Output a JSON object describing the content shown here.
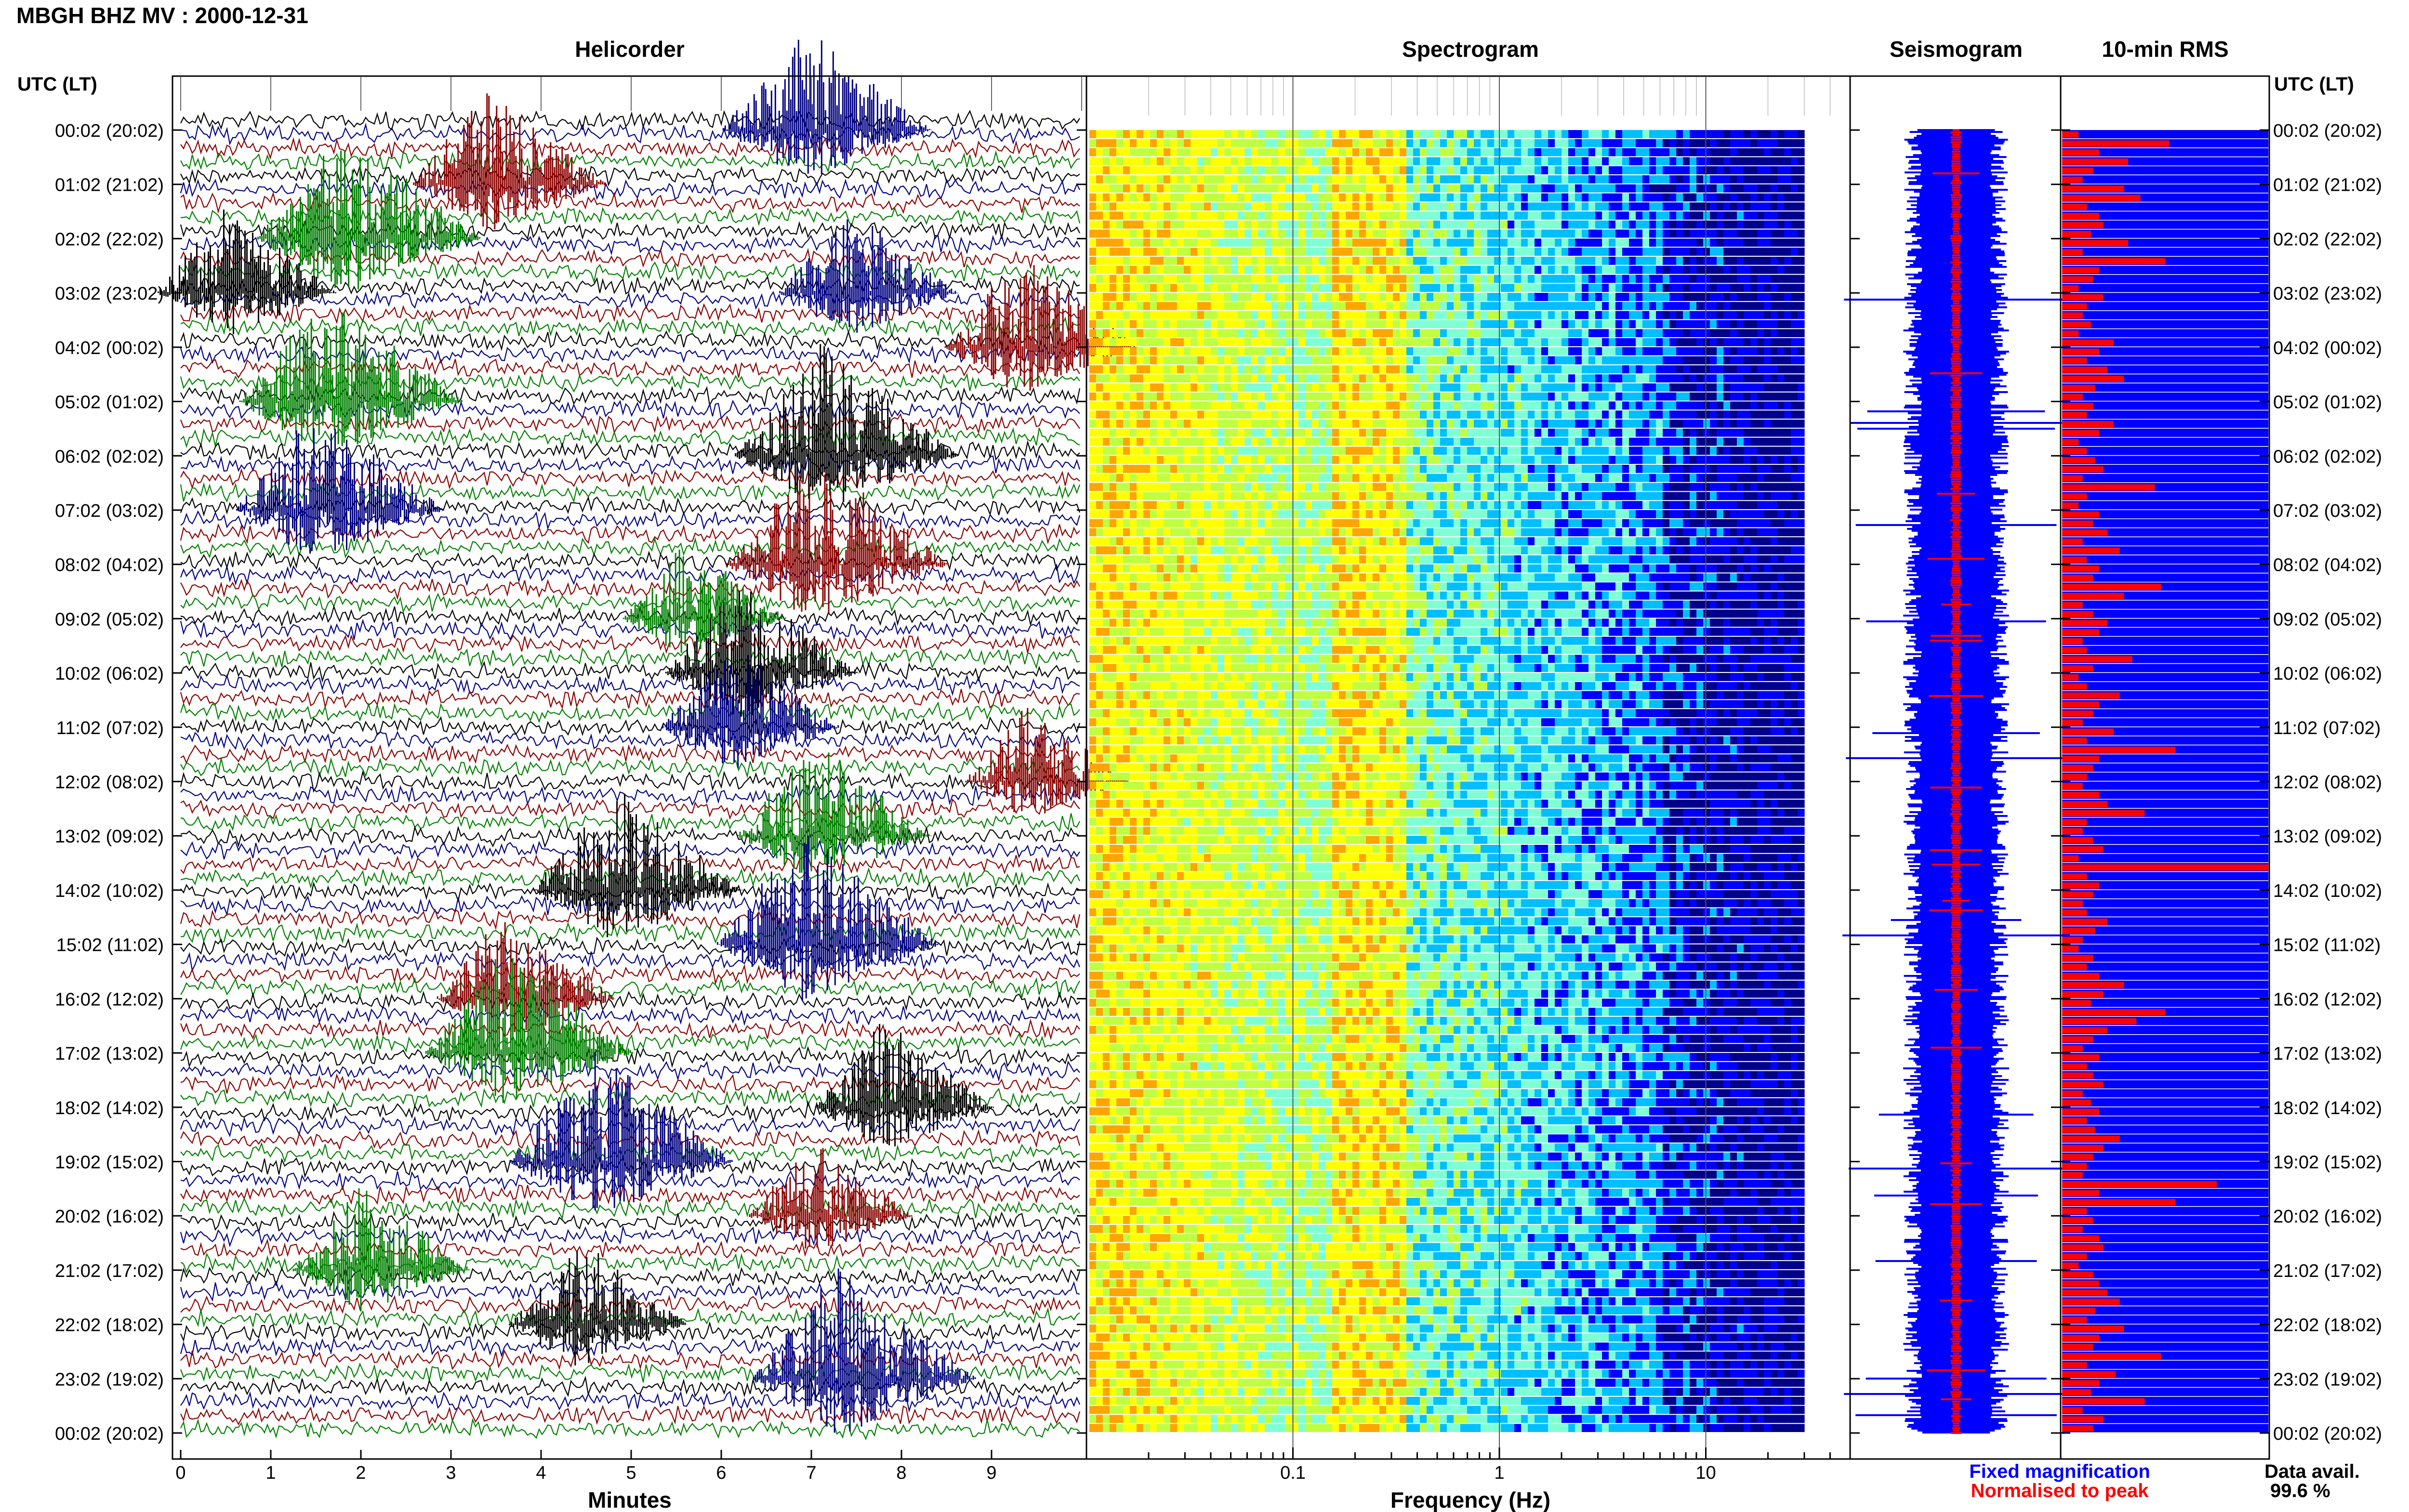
{
  "figure_title": "MBGH BHZ MV : 2000-12-31",
  "panels": {
    "helicorder": "Helicorder",
    "spectrogram": "Spectrogram",
    "seismogram": "Seismogram",
    "rms": "10-min RMS"
  },
  "time_axis_label": "UTC (LT)",
  "row_labels": [
    "00:02 (20:02)",
    "01:02 (21:02)",
    "02:02 (22:02)",
    "03:02 (23:02)",
    "04:02 (00:02)",
    "05:02 (01:02)",
    "06:02 (02:02)",
    "07:02 (03:02)",
    "08:02 (04:02)",
    "09:02 (05:02)",
    "10:02 (06:02)",
    "11:02 (07:02)",
    "12:02 (08:02)",
    "13:02 (09:02)",
    "14:02 (10:02)",
    "15:02 (11:02)",
    "16:02 (12:02)",
    "17:02 (13:02)",
    "18:02 (14:02)",
    "19:02 (15:02)",
    "20:02 (16:02)",
    "21:02 (17:02)",
    "22:02 (18:02)",
    "23:02 (19:02)",
    "00:02 (20:02)"
  ],
  "colors": {
    "trace_cycle": [
      "#000000",
      "#000080",
      "#8b0000",
      "#008000"
    ],
    "fixed": "#0000ff",
    "normalised": "#ff0000"
  },
  "legend": {
    "fixed": "Fixed magnification",
    "normalised": "Normalised to peak",
    "data_avail_label": "Data avail.",
    "data_avail_value": "99.6 %"
  },
  "chart_data": [
    {
      "type": "line",
      "name": "helicorder",
      "xlabel": "Minutes",
      "xlim": [
        0,
        10
      ],
      "xticks": [
        "0",
        "1",
        "2",
        "3",
        "4",
        "5",
        "6",
        "7",
        "8",
        "9"
      ],
      "rows": 24,
      "row_minutes": 10,
      "events": [
        {
          "hour": 0,
          "minute": 6.9,
          "amp": 0.9
        },
        {
          "hour": 1,
          "minute": 3.4,
          "amp": 0.8
        },
        {
          "hour": 2,
          "minute": 1.8,
          "amp": 1.0
        },
        {
          "hour": 3,
          "minute": 0.5,
          "amp": 0.7
        },
        {
          "hour": 3,
          "minute": 7.4,
          "amp": 0.7
        },
        {
          "hour": 4,
          "minute": 9.3,
          "amp": 0.8
        },
        {
          "hour": 5,
          "minute": 1.6,
          "amp": 1.0
        },
        {
          "hour": 6,
          "minute": 7.1,
          "amp": 1.0
        },
        {
          "hour": 7,
          "minute": 1.5,
          "amp": 0.9
        },
        {
          "hour": 8,
          "minute": 7.0,
          "amp": 1.0
        },
        {
          "hour": 9,
          "minute": 5.6,
          "amp": 0.6
        },
        {
          "hour": 10,
          "minute": 6.2,
          "amp": 0.8
        },
        {
          "hour": 11,
          "minute": 6.1,
          "amp": 0.7
        },
        {
          "hour": 12,
          "minute": 9.4,
          "amp": 0.6
        },
        {
          "hour": 13,
          "minute": 7.0,
          "amp": 0.8
        },
        {
          "hour": 14,
          "minute": 4.8,
          "amp": 0.9
        },
        {
          "hour": 15,
          "minute": 6.9,
          "amp": 1.0
        },
        {
          "hour": 16,
          "minute": 3.6,
          "amp": 0.7
        },
        {
          "hour": 17,
          "minute": 3.6,
          "amp": 0.9
        },
        {
          "hour": 18,
          "minute": 7.8,
          "amp": 0.7
        },
        {
          "hour": 19,
          "minute": 4.6,
          "amp": 1.0
        },
        {
          "hour": 20,
          "minute": 7.0,
          "amp": 0.6
        },
        {
          "hour": 21,
          "minute": 2.0,
          "amp": 0.7
        },
        {
          "hour": 22,
          "minute": 4.4,
          "amp": 0.7
        },
        {
          "hour": 23,
          "minute": 7.3,
          "amp": 1.0
        }
      ]
    },
    {
      "type": "heatmap",
      "name": "spectrogram",
      "xlabel": "Frequency (Hz)",
      "xscale": "log",
      "xlim": [
        0.01,
        50
      ],
      "xticks": [
        "0.1",
        "1",
        "10"
      ],
      "x_label_values": [
        0.1,
        1,
        10
      ],
      "rows": 144,
      "data_max_freq": 30,
      "dominant_band_hz": [
        0.15,
        0.35
      ],
      "colormap": [
        "#00008b",
        "#0000ff",
        "#00bfff",
        "#7fffd4",
        "#bfff40",
        "#ffff00",
        "#ffa500",
        "#ff4500",
        "#b22222"
      ]
    },
    {
      "type": "line",
      "name": "seismogram",
      "series": [
        {
          "name": "Fixed magnification",
          "color": "#0000ff"
        },
        {
          "name": "Normalised to peak",
          "color": "#ff0000"
        }
      ]
    },
    {
      "type": "bar",
      "name": "rms",
      "orientation": "horizontal",
      "series": [
        {
          "name": "Fixed magnification",
          "color": "#0000ff",
          "value": 1.0
        },
        {
          "name": "Normalised to peak",
          "color": "#ff0000"
        }
      ],
      "values": [
        0.08,
        0.52,
        0.18,
        0.32,
        0.15,
        0.1,
        0.3,
        0.38,
        0.12,
        0.18,
        0.2,
        0.14,
        0.32,
        0.1,
        0.5,
        0.18,
        0.15,
        0.08,
        0.2,
        0.12,
        0.1,
        0.14,
        0.08,
        0.25,
        0.18,
        0.12,
        0.22,
        0.3,
        0.16,
        0.1,
        0.15,
        0.12,
        0.25,
        0.18,
        0.08,
        0.12,
        0.16,
        0.2,
        0.1,
        0.45,
        0.12,
        0.08,
        0.18,
        0.15,
        0.22,
        0.1,
        0.28,
        0.12,
        0.18,
        0.15,
        0.48,
        0.3,
        0.1,
        0.15,
        0.22,
        0.18,
        0.1,
        0.12,
        0.34,
        0.15,
        0.08,
        0.12,
        0.28,
        0.18,
        0.15,
        0.1,
        0.25,
        0.12,
        0.55,
        0.18,
        0.15,
        0.12,
        0.1,
        0.18,
        0.22,
        0.4,
        0.12,
        0.1,
        0.15,
        0.2,
        0.08,
        1.0,
        0.12,
        0.18,
        0.15,
        0.1,
        0.12,
        0.22,
        0.16,
        0.1,
        0.08,
        0.15,
        0.12,
        0.18,
        0.3,
        0.2,
        0.14,
        0.5,
        0.36,
        0.22,
        0.15,
        0.1,
        0.18,
        0.12,
        0.15,
        0.2,
        0.1,
        0.14,
        0.18,
        0.12,
        0.16,
        0.28,
        0.2,
        0.15,
        0.12,
        0.1,
        0.75,
        0.18,
        0.55,
        0.12,
        0.15,
        0.1,
        0.18,
        0.2,
        0.12,
        0.08,
        0.15,
        0.18,
        0.22,
        0.28,
        0.16,
        0.12,
        0.3,
        0.18,
        0.15,
        0.48,
        0.12,
        0.26,
        0.18,
        0.14,
        0.4,
        0.1,
        0.2,
        0.15
      ]
    }
  ]
}
